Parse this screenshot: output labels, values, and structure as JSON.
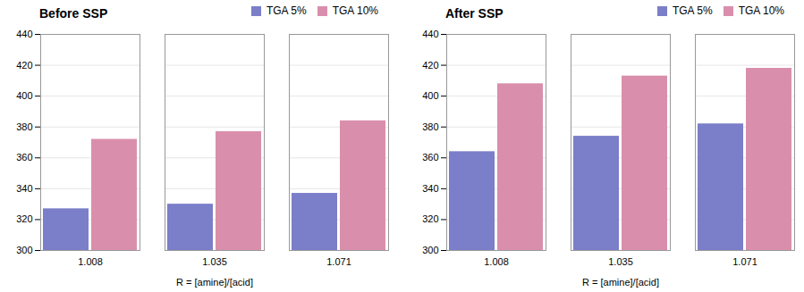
{
  "chart_data": [
    {
      "type": "bar",
      "title": "Before SSP",
      "categories": [
        "1.008",
        "1.035",
        "1.071"
      ],
      "series": [
        {
          "name": "TGA  5%",
          "color": "#7B7EC8",
          "values": [
            327,
            330,
            337
          ]
        },
        {
          "name": "TGA  10%",
          "color": "#D98FAC",
          "values": [
            372,
            377,
            384
          ]
        }
      ],
      "xlabel": "R = [amine]/[acid]",
      "ylim": [
        300,
        440
      ],
      "yticks": [
        300,
        320,
        340,
        360,
        380,
        400,
        420,
        440
      ],
      "grid": true,
      "legend": "upper right"
    },
    {
      "type": "bar",
      "title": "After SSP",
      "categories": [
        "1.008",
        "1.035",
        "1.071"
      ],
      "series": [
        {
          "name": "TGA  5%",
          "color": "#7B7EC8",
          "values": [
            364,
            374,
            382
          ]
        },
        {
          "name": "TGA  10%",
          "color": "#D98FAC",
          "values": [
            408,
            413,
            418
          ]
        }
      ],
      "xlabel": "R = [amine]/[acid]",
      "ylim": [
        300,
        440
      ],
      "yticks": [
        300,
        320,
        340,
        360,
        380,
        400,
        420,
        440
      ],
      "grid": true,
      "legend": "upper right"
    }
  ]
}
